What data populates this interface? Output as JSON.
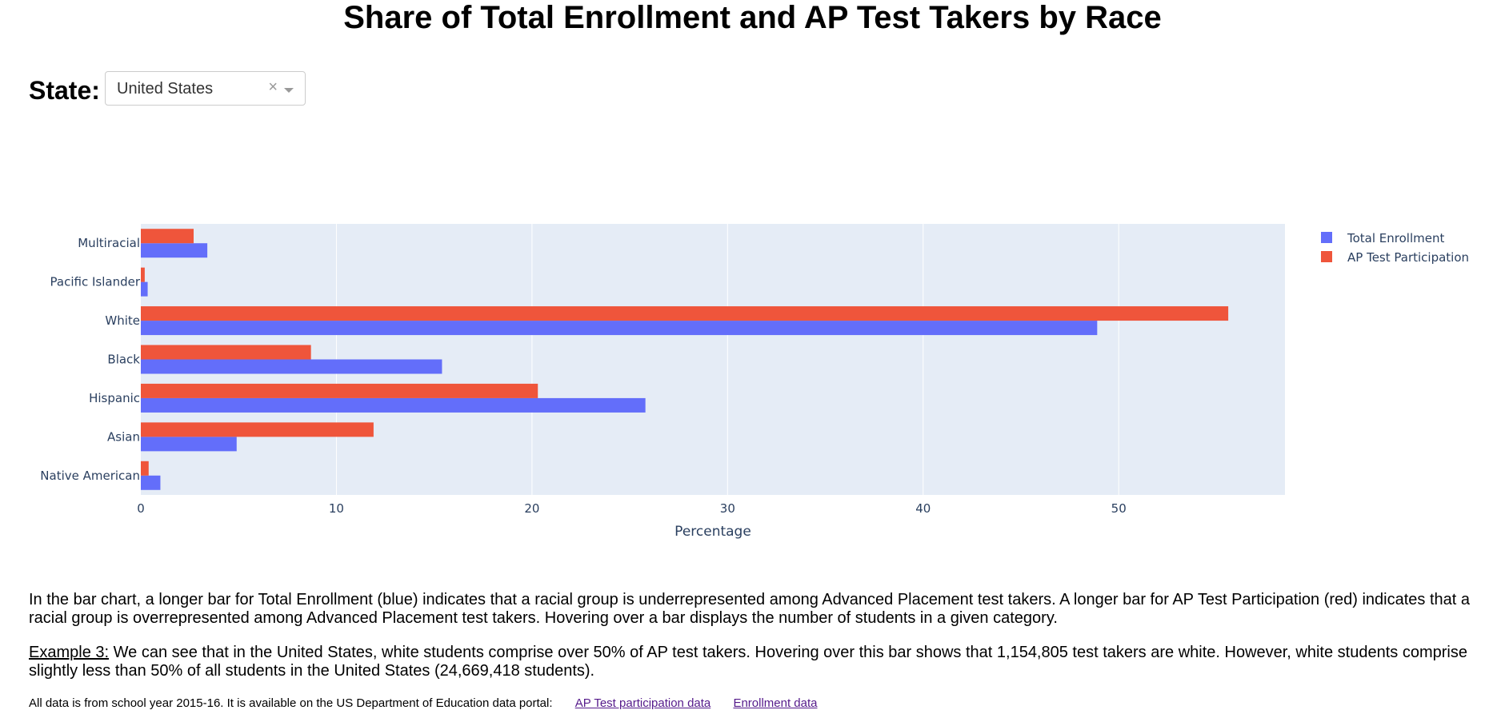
{
  "page": {
    "title": "Share of Total Enrollment and AP Test Takers by Race"
  },
  "state_filter": {
    "label": "State:",
    "selected": "United States",
    "clear_symbol": "×"
  },
  "colors": {
    "enrollment": "#636efa",
    "ap": "#ef553b",
    "plot_bg": "#e5ecf6",
    "grid": "#ffffff"
  },
  "chart_data": {
    "type": "bar",
    "orientation": "horizontal",
    "categories": [
      "Native American",
      "Asian",
      "Hispanic",
      "Black",
      "White",
      "Pacific Islander",
      "Multiracial"
    ],
    "series": [
      {
        "name": "Total Enrollment",
        "values": [
          1.0,
          4.9,
          25.8,
          15.4,
          48.9,
          0.35,
          3.4
        ]
      },
      {
        "name": "AP Test Participation",
        "values": [
          0.4,
          11.9,
          20.3,
          8.7,
          55.6,
          0.2,
          2.7
        ]
      }
    ],
    "xlabel": "Percentage",
    "ylabel": "",
    "xlim": [
      0,
      58.5
    ],
    "xticks": [
      0,
      10,
      20,
      30,
      40,
      50
    ],
    "grid": true,
    "legend_position": "top-right"
  },
  "text": {
    "explanation": "In the bar chart, a longer bar for Total Enrollment (blue) indicates that a racial group is underrepresented among Advanced Placement test takers. A longer bar for AP Test Participation (red) indicates that a racial group is overrepresented among Advanced Placement test takers. Hovering over a bar displays the number of students in a given category.",
    "example_label": "Example 3:",
    "example_body": " We can see that in the United States, white students comprise over 50% of AP test takers. Hovering over this bar shows that 1,154,805 test takers are white. However, white students comprise slightly less than 50% of all students in the United States (24,669,418 students).",
    "footer": "All data is from school year 2015-16. It is available on the US Department of Education data portal:",
    "link_ap": "AP Test participation data",
    "link_enrollment": "Enrollment data"
  }
}
